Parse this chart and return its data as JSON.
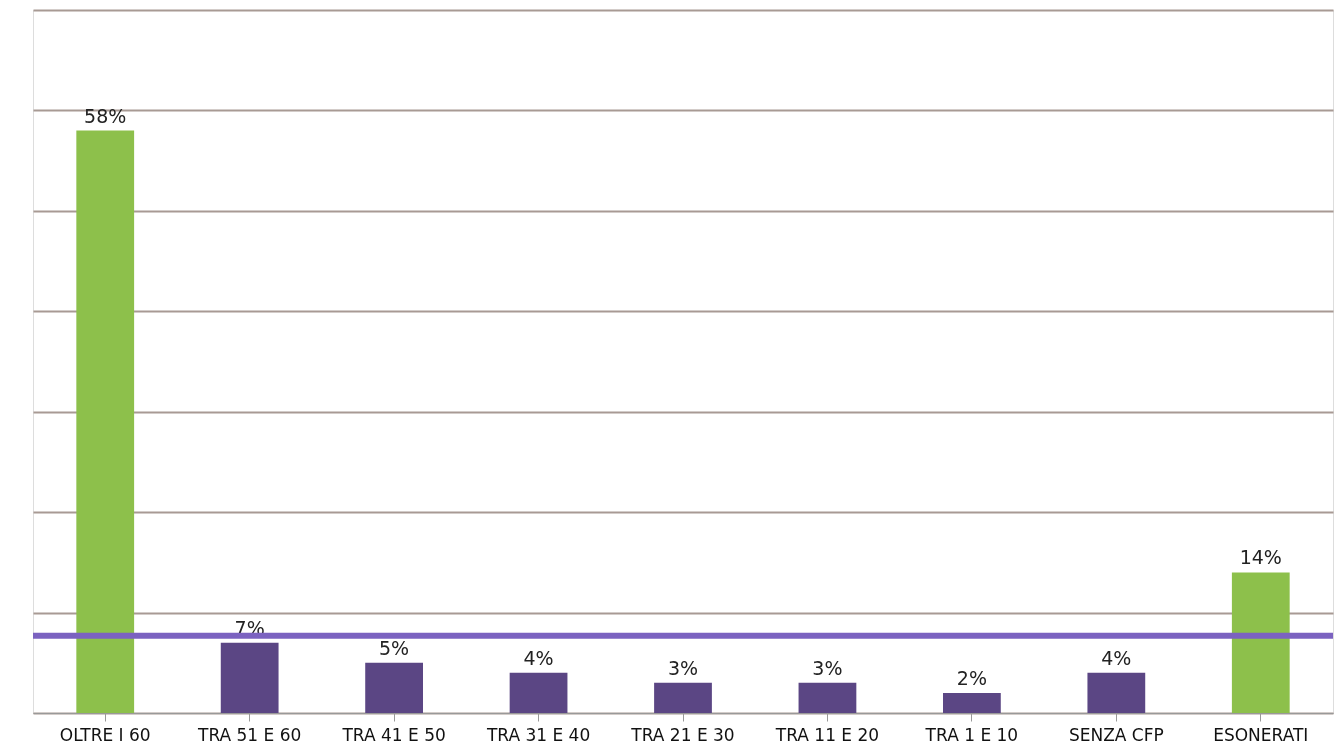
{
  "chart_data": {
    "type": "bar",
    "categories": [
      "OLTRE I 60",
      "TRA 51 E 60",
      "TRA 41 E 50",
      "TRA 31 E 40",
      "TRA 21 E 30",
      "TRA 11 E 20",
      "TRA 1 E 10",
      "SENZA CFP",
      "ESONERATI"
    ],
    "values": [
      58,
      7,
      5,
      4,
      3,
      3,
      2,
      4,
      14
    ],
    "colors": [
      "#8dc04b",
      "#5b4684",
      "#5b4684",
      "#5b4684",
      "#5b4684",
      "#5b4684",
      "#5b4684",
      "#5b4684",
      "#8dc04b"
    ],
    "value_labels": [
      "58%",
      "7%",
      "5%",
      "4%",
      "3%",
      "3%",
      "2%",
      "4%",
      "14%"
    ],
    "ylim": [
      0,
      70
    ],
    "yticks": [
      {
        "value": 0,
        "label": null
      },
      {
        "value": 10,
        "label": null
      },
      {
        "value": 20,
        "label": null
      },
      {
        "value": 30,
        "label": null
      },
      {
        "value": 40,
        "label": null
      },
      {
        "value": 50,
        "label": null
      },
      {
        "value": 60,
        "label": null
      },
      {
        "value": 70,
        "label": null
      }
    ],
    "tick_labels": "x",
    "grid": "y",
    "ref_lines": [
      {
        "axis": "y",
        "value": 7.7,
        "color": "#7b62c0"
      }
    ]
  }
}
